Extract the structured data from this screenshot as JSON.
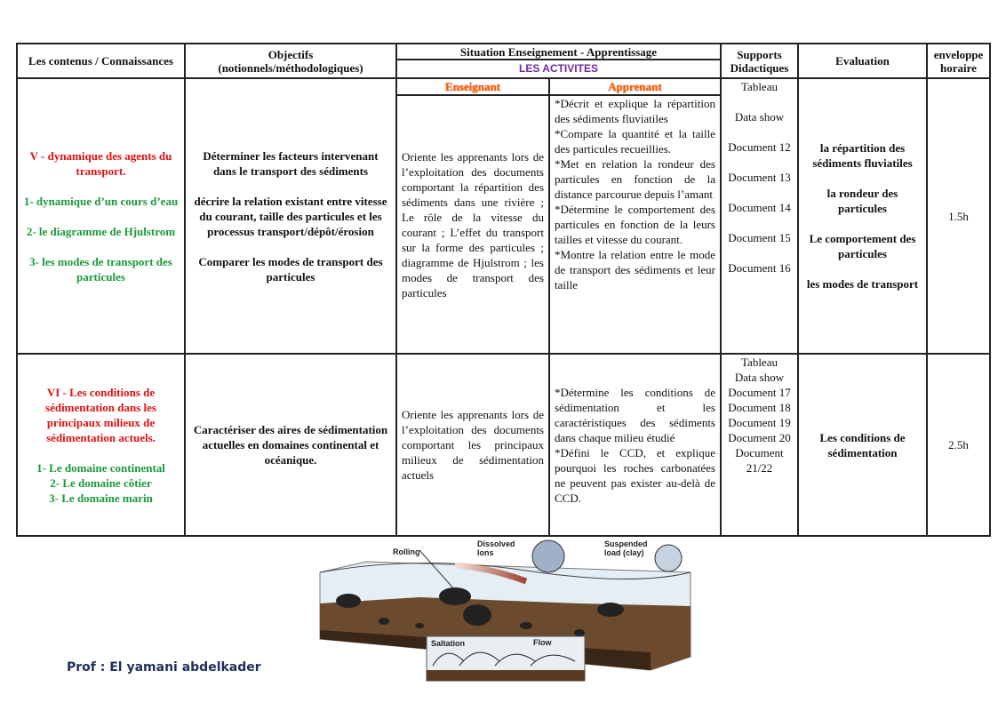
{
  "header": {
    "col1": "Les contenus / Connaissances",
    "col2_line1": "Objectifs",
    "col2_line2": "(notionnels/méthodologiques)",
    "col3": "Situation Enseignement - Apprentissage",
    "col3_sub": "LES ACTIVITES",
    "col4_line1": "Supports",
    "col4_line2": "Didactiques",
    "col5": "Evaluation",
    "col6_line1": "enveloppe",
    "col6_line2": "horaire",
    "enseignant": "Enseignant",
    "apprenant": "Apprenant"
  },
  "rows": [
    {
      "contenus": [
        {
          "text": "V - dynamique des agents du transport.",
          "color": "red"
        },
        {
          "text": "1- dynamique d’un cours d’eau",
          "color": "green"
        },
        {
          "text": "2- le diagramme de Hjulstrom",
          "color": "green"
        },
        {
          "text": "3- les modes de transport des particules",
          "color": "green"
        }
      ],
      "objectifs": [
        "Déterminer les facteurs intervenant dans le transport des sédiments",
        "décrire la relation existant entre vitesse du courant, taille des particules et les processus transport/dépôt/érosion",
        "Comparer les modes de transport des particules"
      ],
      "enseignant": "Oriente les apprenants lors de l’exploitation des documents comportant la répartition des sédiments dans une rivière ; Le rôle de la vitesse du courant ; L’effet du transport sur la forme des particules ; diagramme de Hjulstrom ; les modes de transport des particules",
      "apprenant": [
        "*Décrit et explique la répartition des sédiments fluviatiles",
        "*Compare la quantité et la taille des particules recueillies.",
        "*Met en relation la rondeur des particules en fonction de la distance parcourue depuis l’amant",
        "*Détermine le comportement des particules en fonction de la leurs tailles et vitesse du courant.",
        "*Montre la relation entre le mode de transport des sédiments et leur taille"
      ],
      "supports": [
        "Tableau",
        "Data show",
        "Document 12",
        "Document 13",
        "Document 14",
        "Document 15",
        "Document 16"
      ],
      "evaluation": [
        "la répartition des sédiments fluviatiles",
        "la rondeur des particules",
        "Le comportement des particules",
        "les modes de transport"
      ],
      "horaire": "1.5h"
    },
    {
      "contenus": [
        {
          "text": "VI - Les conditions de sédimentation dans les principaux milieux de sédimentation actuels.",
          "color": "red"
        },
        {
          "text": "1- Le domaine continental",
          "color": "green"
        },
        {
          "text": "2- Le domaine côtier",
          "color": "green"
        },
        {
          "text": "3- Le domaine marin",
          "color": "green"
        }
      ],
      "objectifs": [
        "Caractériser des aires de sédimentation actuelles en domaines continental et océanique."
      ],
      "enseignant": "Oriente les apprenants lors de l’exploitation des documents comportant les principaux milieux de sédimentation actuels",
      "apprenant": [
        "*Détermine les conditions de sédimentation et les caractéristiques des sédiments dans chaque milieu étudié",
        "*Défini le CCD, et explique pourquoi les roches carbonatées ne peuvent pas exister au-delà de CCD."
      ],
      "supports": [
        "Tableau",
        "Data show",
        "Document 17",
        "Document 18",
        "Document 19",
        "Document 20",
        "Document 21/22"
      ],
      "evaluation": [
        "Les conditions de sédimentation"
      ],
      "horaire": "2.5h"
    }
  ],
  "figure": {
    "labels": {
      "rolling": "Rolling",
      "dissolved1": "Dissolved",
      "dissolved2": "Ions",
      "suspended1": "Suspended",
      "suspended2": "load (clay)",
      "saltation": "Saltation",
      "flow": "Flow"
    }
  },
  "footer": {
    "author": "Prof : El yamani abdelkader"
  },
  "colors": {
    "red": "#e01010",
    "green": "#1a9a3a",
    "purple": "#6a2aa0",
    "orange": "#f26a00"
  }
}
